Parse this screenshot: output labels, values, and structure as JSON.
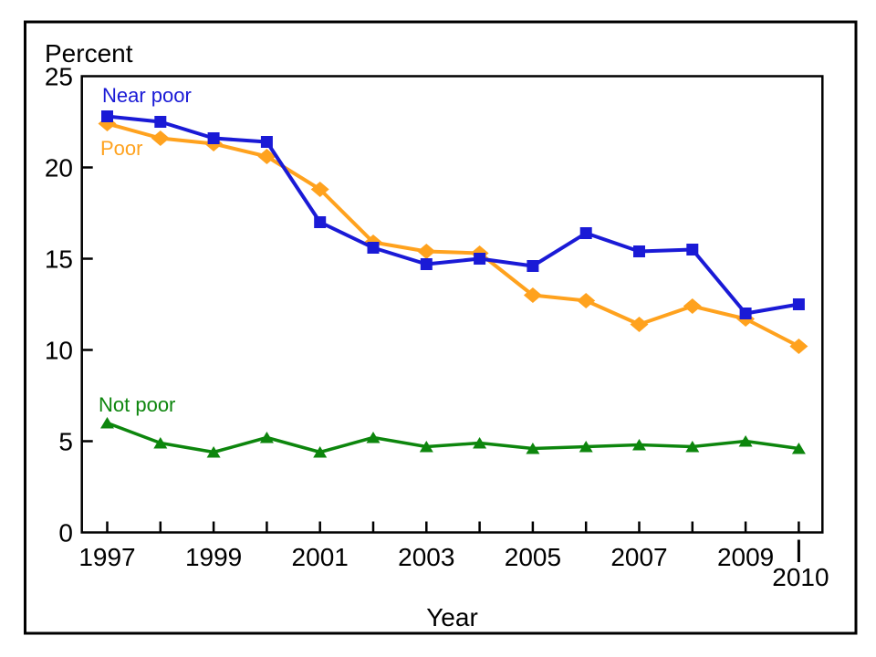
{
  "figure": {
    "background": "#ffffff",
    "border_color": "#000000",
    "axis_color": "#000000"
  },
  "chart": {
    "y_axis_title": "Percent",
    "x_axis_title": "Year"
  },
  "chart_data": {
    "type": "line",
    "title": "",
    "xlabel": "Year",
    "ylabel": "Percent",
    "grid": false,
    "legend_position": "inline-annotations",
    "ylim": [
      0,
      25
    ],
    "y_ticks": [
      0,
      5,
      10,
      15,
      20,
      25
    ],
    "x": [
      1997,
      1998,
      1999,
      2000,
      2001,
      2002,
      2003,
      2004,
      2005,
      2006,
      2007,
      2008,
      2009,
      2010
    ],
    "x_tick_label_years": [
      1997,
      1999,
      2001,
      2003,
      2005,
      2007,
      2009
    ],
    "offset_x_tick_label": "2010",
    "series": [
      {
        "name": "Near poor",
        "marker": "square",
        "color": "#1a1ad6",
        "values": [
          22.8,
          22.5,
          21.6,
          21.4,
          17.0,
          15.6,
          14.7,
          15.0,
          14.6,
          16.4,
          15.4,
          15.5,
          12.0,
          12.5
        ]
      },
      {
        "name": "Poor",
        "marker": "diamond",
        "color": "#ffa21e",
        "values": [
          22.4,
          21.6,
          21.3,
          20.6,
          18.8,
          15.9,
          15.4,
          15.3,
          13.0,
          12.7,
          11.4,
          12.4,
          11.7,
          10.2
        ]
      },
      {
        "name": "Not poor",
        "marker": "triangle",
        "color": "#0d860d",
        "values": [
          6.0,
          4.9,
          4.4,
          5.2,
          4.4,
          5.2,
          4.7,
          4.9,
          4.6,
          4.7,
          4.8,
          4.7,
          5.0,
          4.6
        ]
      }
    ]
  }
}
